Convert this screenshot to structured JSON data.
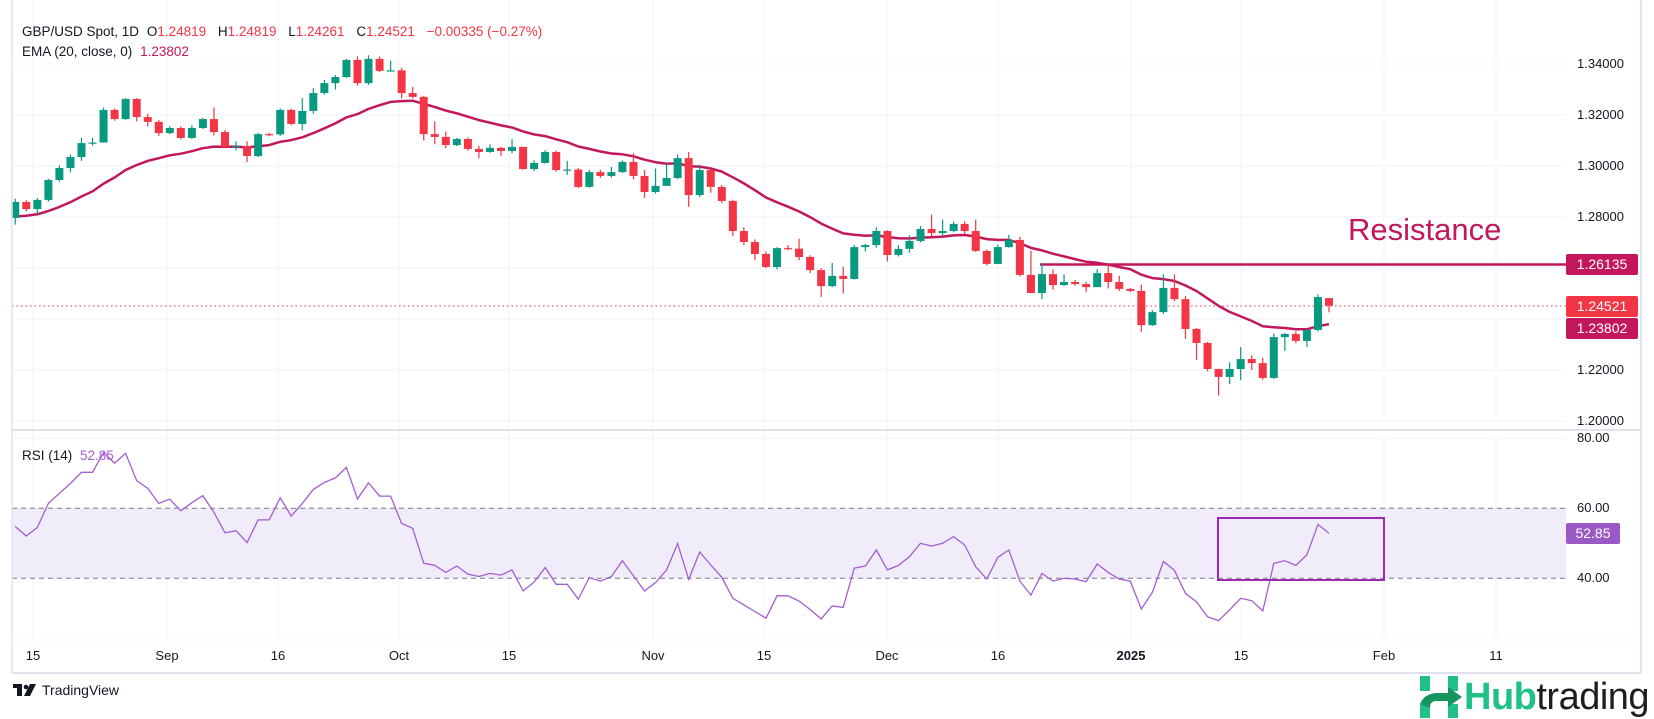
{
  "header": {
    "symbol": "GBP/USD Spot, 1D",
    "o_label": "O",
    "o_value": "1.24819",
    "h_label": "H",
    "h_value": "1.24819",
    "l_label": "L",
    "l_value": "1.24261",
    "c_label": "C",
    "c_value": "1.24521",
    "change": "−0.00335 (−0.27%)",
    "ema_label": "EMA (20, close, 0)",
    "ema_value": "1.23802"
  },
  "rsi_header": {
    "label": "RSI (14)",
    "value": "52.85"
  },
  "annotation": {
    "resistance_text": "Resistance"
  },
  "price_tags": {
    "resistance": "1.26135",
    "last": "1.24521",
    "ema": "1.23802",
    "rsi": "52.85"
  },
  "price_axis": [
    "1.34000",
    "1.32000",
    "1.30000",
    "1.28000",
    "1.22000",
    "1.20000"
  ],
  "rsi_axis": [
    "80.00",
    "60.00",
    "40.00"
  ],
  "time_axis": [
    "15",
    "Sep",
    "16",
    "Oct",
    "15",
    "Nov",
    "15",
    "Dec",
    "16",
    "2025",
    "15",
    "Feb",
    "11"
  ],
  "branding": {
    "tradingview": "TradingView",
    "hub_green": "Hub",
    "hub_dark": "trading"
  },
  "colors": {
    "up": "#089981",
    "down": "#f23645",
    "ema": "#c2185b",
    "resistance": "#c2185b",
    "rsi": "#a35ed0",
    "rsi_box": "#9c27b0"
  },
  "chart_data": [
    {
      "type": "candlestick",
      "title": "GBP/USD Spot, 1D",
      "ylim": [
        1.2,
        1.34
      ],
      "yticks": [
        1.2,
        1.22,
        1.24,
        1.26,
        1.28,
        1.3,
        1.32,
        1.34
      ],
      "resistance_level": 1.26135,
      "last_price": 1.24521,
      "ema_period": 20,
      "ema_last": 1.23802,
      "candles_ohlc": [
        [
          1.2796,
          1.2872,
          1.277,
          1.2859
        ],
        [
          1.2859,
          1.2866,
          1.2822,
          1.2831
        ],
        [
          1.2831,
          1.2874,
          1.2812,
          1.2867
        ],
        [
          1.2867,
          1.295,
          1.286,
          1.2945
        ],
        [
          1.2945,
          1.3003,
          1.2938,
          1.2992
        ],
        [
          1.2992,
          1.3045,
          1.2975,
          1.3035
        ],
        [
          1.3035,
          1.311,
          1.302,
          1.309
        ],
        [
          1.309,
          1.311,
          1.308,
          1.3092
        ],
        [
          1.3092,
          1.3229,
          1.3092,
          1.322
        ],
        [
          1.322,
          1.3226,
          1.3178,
          1.3184
        ],
        [
          1.3184,
          1.3266,
          1.3181,
          1.3263
        ],
        [
          1.3263,
          1.3266,
          1.3175,
          1.3192
        ],
        [
          1.3192,
          1.3205,
          1.3155,
          1.3173
        ],
        [
          1.3173,
          1.318,
          1.3118,
          1.3129
        ],
        [
          1.3129,
          1.3156,
          1.3124,
          1.3149
        ],
        [
          1.3149,
          1.3155,
          1.3104,
          1.311
        ],
        [
          1.311,
          1.316,
          1.3106,
          1.3149
        ],
        [
          1.3149,
          1.3188,
          1.3145,
          1.3184
        ],
        [
          1.3184,
          1.323,
          1.312,
          1.3133
        ],
        [
          1.3133,
          1.3141,
          1.3072,
          1.3075
        ],
        [
          1.3075,
          1.3097,
          1.3062,
          1.3078
        ],
        [
          1.3078,
          1.3097,
          1.3015,
          1.3039
        ],
        [
          1.3039,
          1.313,
          1.3035,
          1.3125
        ],
        [
          1.3125,
          1.313,
          1.3118,
          1.3124
        ],
        [
          1.3124,
          1.3226,
          1.3118,
          1.322
        ],
        [
          1.322,
          1.3225,
          1.316,
          1.3165
        ],
        [
          1.3165,
          1.3267,
          1.314,
          1.3216
        ],
        [
          1.3216,
          1.3305,
          1.3205,
          1.3286
        ],
        [
          1.3286,
          1.3338,
          1.328,
          1.3325
        ],
        [
          1.3325,
          1.3357,
          1.33,
          1.3349
        ],
        [
          1.3349,
          1.342,
          1.3345,
          1.3416
        ],
        [
          1.3416,
          1.343,
          1.3315,
          1.3325
        ],
        [
          1.3325,
          1.3434,
          1.3318,
          1.342
        ],
        [
          1.342,
          1.343,
          1.3368,
          1.3373
        ],
        [
          1.3373,
          1.3413,
          1.337,
          1.3375
        ],
        [
          1.3375,
          1.3385,
          1.3265,
          1.3286
        ],
        [
          1.3286,
          1.331,
          1.3265,
          1.3271
        ],
        [
          1.3271,
          1.3275,
          1.31,
          1.3125
        ],
        [
          1.3125,
          1.3175,
          1.3085,
          1.3114
        ],
        [
          1.3114,
          1.3135,
          1.307,
          1.3082
        ],
        [
          1.3082,
          1.311,
          1.3078,
          1.3106
        ],
        [
          1.3106,
          1.3112,
          1.306,
          1.3067
        ],
        [
          1.3067,
          1.308,
          1.303,
          1.3055
        ],
        [
          1.3055,
          1.3085,
          1.3052,
          1.3071
        ],
        [
          1.3071,
          1.3075,
          1.304,
          1.3059
        ],
        [
          1.3059,
          1.3105,
          1.305,
          1.3075
        ],
        [
          1.3075,
          1.3075,
          1.2985,
          1.2988
        ],
        [
          1.2988,
          1.3022,
          1.298,
          1.3012
        ],
        [
          1.3012,
          1.3062,
          1.301,
          1.3055
        ],
        [
          1.3055,
          1.306,
          1.2978,
          1.2984
        ],
        [
          1.2984,
          1.302,
          1.2965,
          1.2986
        ],
        [
          1.2986,
          1.2992,
          1.2913,
          1.2918
        ],
        [
          1.2918,
          1.2985,
          1.2915,
          1.2976
        ],
        [
          1.2976,
          1.2985,
          1.2953,
          1.2961
        ],
        [
          1.2961,
          1.2996,
          1.2955,
          1.2976
        ],
        [
          1.2976,
          1.3022,
          1.2972,
          1.3016
        ],
        [
          1.3016,
          1.305,
          1.2948,
          1.2961
        ],
        [
          1.2961,
          1.2985,
          1.2875,
          1.2898
        ],
        [
          1.2898,
          1.299,
          1.2892,
          1.2922
        ],
        [
          1.2922,
          1.301,
          1.294,
          1.2953
        ],
        [
          1.2953,
          1.3045,
          1.2948,
          1.3031
        ],
        [
          1.3031,
          1.3055,
          1.284,
          1.2886
        ],
        [
          1.2886,
          1.3005,
          1.2878,
          1.2984
        ],
        [
          1.2984,
          1.2985,
          1.2895,
          1.2918
        ],
        [
          1.2918,
          1.2925,
          1.2855,
          1.2863
        ],
        [
          1.2863,
          1.2868,
          1.2725,
          1.2745
        ],
        [
          1.2745,
          1.276,
          1.269,
          1.2702
        ],
        [
          1.2702,
          1.2712,
          1.263,
          1.2655
        ],
        [
          1.2655,
          1.2665,
          1.26,
          1.2604
        ],
        [
          1.2604,
          1.2682,
          1.2595,
          1.2678
        ],
        [
          1.2678,
          1.269,
          1.267,
          1.2676
        ],
        [
          1.2676,
          1.2715,
          1.263,
          1.2643
        ],
        [
          1.2643,
          1.265,
          1.258,
          1.2592
        ],
        [
          1.2592,
          1.26,
          1.2487,
          1.2529
        ],
        [
          1.2529,
          1.262,
          1.2525,
          1.2569
        ],
        [
          1.2569,
          1.2605,
          1.25,
          1.2557
        ],
        [
          1.2557,
          1.269,
          1.2555,
          1.2682
        ],
        [
          1.2682,
          1.2695,
          1.2665,
          1.269
        ],
        [
          1.269,
          1.276,
          1.268,
          1.2745
        ],
        [
          1.2745,
          1.2748,
          1.2625,
          1.2651
        ],
        [
          1.2651,
          1.269,
          1.2645,
          1.2675
        ],
        [
          1.2675,
          1.2728,
          1.266,
          1.2706
        ],
        [
          1.2706,
          1.2765,
          1.27,
          1.2753
        ],
        [
          1.2753,
          1.281,
          1.2725,
          1.2737
        ],
        [
          1.2737,
          1.279,
          1.2725,
          1.2745
        ],
        [
          1.2745,
          1.2782,
          1.274,
          1.2773
        ],
        [
          1.2773,
          1.2783,
          1.2735,
          1.2745
        ],
        [
          1.2745,
          1.279,
          1.2663,
          1.2667
        ],
        [
          1.2667,
          1.2672,
          1.261,
          1.2616
        ],
        [
          1.2616,
          1.2692,
          1.2615,
          1.2682
        ],
        [
          1.2682,
          1.273,
          1.268,
          1.271
        ],
        [
          1.271,
          1.2722,
          1.2567,
          1.2573
        ],
        [
          1.2573,
          1.2668,
          1.2502,
          1.2502
        ],
        [
          1.2502,
          1.262,
          1.2478,
          1.2576
        ],
        [
          1.2576,
          1.2595,
          1.2515,
          1.2533
        ],
        [
          1.2533,
          1.2575,
          1.253,
          1.2545
        ],
        [
          1.2545,
          1.2553,
          1.253,
          1.2537
        ],
        [
          1.2537,
          1.2545,
          1.2505,
          1.2525
        ],
        [
          1.2525,
          1.2595,
          1.2535,
          1.258
        ],
        [
          1.258,
          1.262,
          1.252,
          1.2545
        ],
        [
          1.2545,
          1.257,
          1.251,
          1.2518
        ],
        [
          1.2518,
          1.2522,
          1.2505,
          1.251
        ],
        [
          1.251,
          1.2535,
          1.235,
          1.2376
        ],
        [
          1.2376,
          1.2435,
          1.2373,
          1.2427
        ],
        [
          1.2427,
          1.2575,
          1.242,
          1.2522
        ],
        [
          1.2522,
          1.2575,
          1.247,
          1.2478
        ],
        [
          1.2478,
          1.249,
          1.2322,
          1.2361
        ],
        [
          1.2361,
          1.2365,
          1.224,
          1.2306
        ],
        [
          1.2306,
          1.231,
          1.2195,
          1.2204
        ],
        [
          1.2204,
          1.2205,
          1.21,
          1.2173
        ],
        [
          1.2173,
          1.223,
          1.2145,
          1.2204
        ],
        [
          1.2204,
          1.229,
          1.216,
          1.2243
        ],
        [
          1.2243,
          1.2258,
          1.22,
          1.2227
        ],
        [
          1.2227,
          1.2248,
          1.2162,
          1.2169
        ],
        [
          1.2169,
          1.2343,
          1.2165,
          1.2329
        ],
        [
          1.2329,
          1.2345,
          1.2275,
          1.2341
        ],
        [
          1.2341,
          1.2352,
          1.2305,
          1.2314
        ],
        [
          1.2314,
          1.2362,
          1.229,
          1.2357
        ],
        [
          1.2357,
          1.2497,
          1.2351,
          1.2486
        ],
        [
          1.24819,
          1.24819,
          1.24261,
          1.24521
        ]
      ]
    },
    {
      "type": "line",
      "title": "RSI (14)",
      "ylim": [
        20,
        80
      ],
      "bands": [
        40,
        60
      ],
      "highlight_box": {
        "x_from": "Jan 13",
        "x_to": "Jan 31",
        "y_from": 40,
        "y_to": 57
      },
      "values": [
        54.8,
        52.1,
        54.5,
        61.4,
        64.3,
        67.1,
        70.3,
        70.3,
        75.9,
        72.9,
        75.7,
        67.9,
        65.7,
        61.4,
        62.6,
        59.3,
        61.6,
        63.6,
        58.8,
        53.0,
        53.6,
        50.2,
        56.7,
        56.7,
        63.0,
        57.8,
        61.4,
        65.4,
        67.4,
        68.7,
        71.7,
        62.7,
        67.3,
        63.5,
        63.5,
        55.7,
        54.3,
        44.3,
        43.7,
        41.7,
        43.5,
        41.2,
        40.5,
        41.4,
        40.9,
        42.4,
        36.4,
        38.9,
        43.1,
        38.3,
        38.3,
        34.1,
        40.2,
        39.2,
        40.5,
        45.0,
        40.7,
        36.4,
        38.8,
        42.4,
        49.9,
        39.7,
        47.5,
        43.8,
        40.3,
        34.3,
        32.4,
        30.5,
        28.6,
        35.0,
        35.0,
        33.5,
        31.1,
        28.4,
        32.1,
        31.7,
        42.9,
        43.5,
        48.1,
        42.4,
        43.7,
        46.2,
        50.0,
        49.2,
        50.0,
        51.9,
        49.5,
        43.3,
        39.8,
        46.0,
        48.1,
        39.2,
        35.2,
        41.4,
        39.2,
        40.0,
        39.8,
        39.0,
        44.1,
        41.7,
        39.8,
        39.2,
        31.2,
        36.0,
        44.8,
        42.3,
        35.7,
        33.3,
        29.0,
        27.9,
        31.0,
        34.3,
        33.6,
        30.7,
        44.3,
        45.0,
        43.7,
        46.7,
        55.4,
        52.85
      ]
    }
  ]
}
